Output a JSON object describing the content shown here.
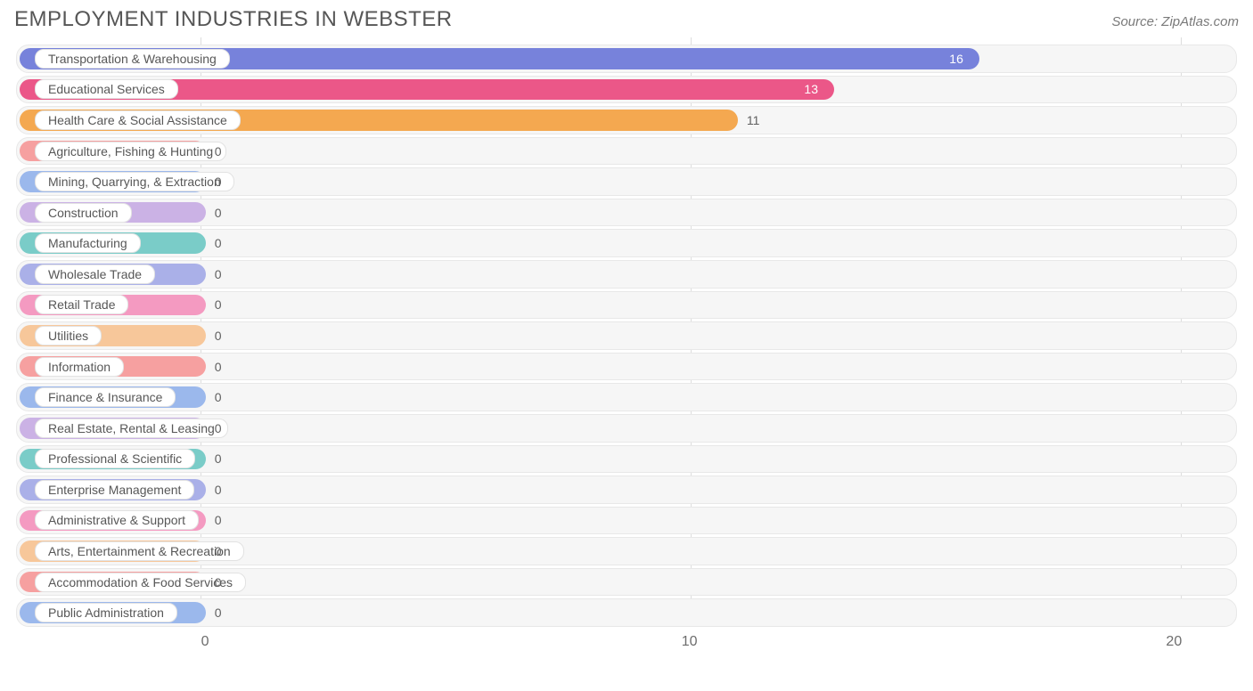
{
  "title": "EMPLOYMENT INDUSTRIES IN WEBSTER",
  "source": "Source: ZipAtlas.com",
  "chart": {
    "type": "bar-horizontal",
    "xmin": -3.9,
    "xmax": 21.3,
    "xtick_positions": [
      0,
      10,
      20
    ],
    "xtick_labels": [
      "0",
      "10",
      "20"
    ],
    "label_fontsize": 14,
    "tick_fontsize": 16,
    "title_fontsize": 24,
    "title_color": "#565656",
    "source_fontsize": 15,
    "source_color": "#7a7a7a",
    "track_bg": "#f6f6f6",
    "track_border": "#e8e8e8",
    "grid_color": "#dddddd",
    "bar_radius": 12,
    "bars": [
      {
        "label": "Transportation & Warehousing",
        "value": 16,
        "color": "#7782db",
        "value_text_inside": true,
        "value_color": "#ffffff"
      },
      {
        "label": "Educational Services",
        "value": 13,
        "color": "#eb5788",
        "value_text_inside": true,
        "value_color": "#ffffff"
      },
      {
        "label": "Health Care & Social Assistance",
        "value": 11,
        "color": "#f4a850",
        "value_text_inside": false,
        "value_color": "#5f5f5f"
      },
      {
        "label": "Agriculture, Fishing & Hunting",
        "value": 0,
        "color": "#f6a0a0",
        "value_text_inside": false,
        "value_color": "#5f5f5f"
      },
      {
        "label": "Mining, Quarrying, & Extraction",
        "value": 0,
        "color": "#9bb8ec",
        "value_text_inside": false,
        "value_color": "#5f5f5f"
      },
      {
        "label": "Construction",
        "value": 0,
        "color": "#cbb2e5",
        "value_text_inside": false,
        "value_color": "#5f5f5f"
      },
      {
        "label": "Manufacturing",
        "value": 0,
        "color": "#7accc8",
        "value_text_inside": false,
        "value_color": "#5f5f5f"
      },
      {
        "label": "Wholesale Trade",
        "value": 0,
        "color": "#aab0e8",
        "value_text_inside": false,
        "value_color": "#5f5f5f"
      },
      {
        "label": "Retail Trade",
        "value": 0,
        "color": "#f49ac1",
        "value_text_inside": false,
        "value_color": "#5f5f5f"
      },
      {
        "label": "Utilities",
        "value": 0,
        "color": "#f7c79a",
        "value_text_inside": false,
        "value_color": "#5f5f5f"
      },
      {
        "label": "Information",
        "value": 0,
        "color": "#f6a0a0",
        "value_text_inside": false,
        "value_color": "#5f5f5f"
      },
      {
        "label": "Finance & Insurance",
        "value": 0,
        "color": "#9bb8ec",
        "value_text_inside": false,
        "value_color": "#5f5f5f"
      },
      {
        "label": "Real Estate, Rental & Leasing",
        "value": 0,
        "color": "#cbb2e5",
        "value_text_inside": false,
        "value_color": "#5f5f5f"
      },
      {
        "label": "Professional & Scientific",
        "value": 0,
        "color": "#7accc8",
        "value_text_inside": false,
        "value_color": "#5f5f5f"
      },
      {
        "label": "Enterprise Management",
        "value": 0,
        "color": "#aab0e8",
        "value_text_inside": false,
        "value_color": "#5f5f5f"
      },
      {
        "label": "Administrative & Support",
        "value": 0,
        "color": "#f49ac1",
        "value_text_inside": false,
        "value_color": "#5f5f5f"
      },
      {
        "label": "Arts, Entertainment & Recreation",
        "value": 0,
        "color": "#f7c79a",
        "value_text_inside": false,
        "value_color": "#5f5f5f"
      },
      {
        "label": "Accommodation & Food Services",
        "value": 0,
        "color": "#f6a0a0",
        "value_text_inside": false,
        "value_color": "#5f5f5f"
      },
      {
        "label": "Public Administration",
        "value": 0,
        "color": "#9bb8ec",
        "value_text_inside": false,
        "value_color": "#5f5f5f"
      }
    ]
  }
}
